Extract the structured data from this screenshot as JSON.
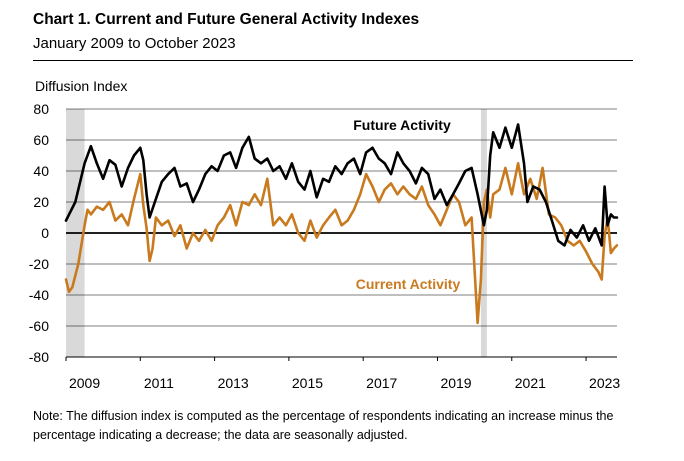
{
  "header": {
    "title": "Chart 1. Current and Future General Activity Indexes",
    "subtitle": "January 2009 to October 2023"
  },
  "note": "Note: The diffusion index is computed as the percentage of respondents indicating an increase minus the percentage indicating a decrease; the data are seasonally adjusted.",
  "chart_data": {
    "type": "line",
    "title": "Chart 1. Current and Future General Activity Indexes",
    "subtitle": "January 2009 to October 2023",
    "ylabel": "Diffusion Index",
    "xlabel": "",
    "ylim": [
      -80,
      80
    ],
    "yticks": [
      -80,
      -60,
      -40,
      -20,
      0,
      20,
      40,
      60,
      80
    ],
    "xlim": [
      2009.0,
      2023.833
    ],
    "xticks": [
      2009,
      2011,
      2013,
      2015,
      2017,
      2019,
      2021,
      2023
    ],
    "grid": true,
    "recessions": [
      [
        2009.0,
        2009.5
      ],
      [
        2020.17,
        2020.33
      ]
    ],
    "colors": {
      "future": "#000000",
      "current": "#c97a1e",
      "recession": "#d9d9d9",
      "grid": "#000000"
    },
    "series": [
      {
        "name": "Future Activity",
        "label": "Future Activity",
        "x": [
          2009.0,
          2009.25,
          2009.5,
          2009.67,
          2009.83,
          2010.0,
          2010.17,
          2010.33,
          2010.5,
          2010.67,
          2010.83,
          2011.0,
          2011.08,
          2011.17,
          2011.25,
          2011.42,
          2011.58,
          2011.75,
          2011.92,
          2012.08,
          2012.25,
          2012.42,
          2012.58,
          2012.75,
          2012.92,
          2013.08,
          2013.25,
          2013.42,
          2013.58,
          2013.75,
          2013.92,
          2014.08,
          2014.25,
          2014.42,
          2014.58,
          2014.75,
          2014.92,
          2015.08,
          2015.25,
          2015.42,
          2015.58,
          2015.75,
          2015.92,
          2016.08,
          2016.25,
          2016.42,
          2016.58,
          2016.75,
          2016.92,
          2017.08,
          2017.25,
          2017.42,
          2017.58,
          2017.75,
          2017.92,
          2018.08,
          2018.25,
          2018.42,
          2018.58,
          2018.75,
          2018.92,
          2019.08,
          2019.25,
          2019.42,
          2019.58,
          2019.75,
          2019.92,
          2020.08,
          2020.25,
          2020.33,
          2020.42,
          2020.5,
          2020.67,
          2020.83,
          2021.0,
          2021.17,
          2021.33,
          2021.42,
          2021.58,
          2021.75,
          2021.92,
          2022.08,
          2022.25,
          2022.42,
          2022.58,
          2022.75,
          2022.92,
          2023.08,
          2023.25,
          2023.42,
          2023.5,
          2023.58,
          2023.67,
          2023.75,
          2023.83
        ],
        "values": [
          8,
          20,
          45,
          56,
          45,
          35,
          47,
          44,
          30,
          42,
          50,
          55,
          47,
          25,
          10,
          22,
          33,
          38,
          42,
          30,
          32,
          20,
          28,
          38,
          43,
          40,
          50,
          52,
          42,
          55,
          62,
          48,
          45,
          48,
          40,
          43,
          35,
          45,
          33,
          28,
          40,
          23,
          35,
          33,
          43,
          38,
          45,
          48,
          38,
          52,
          55,
          48,
          45,
          38,
          52,
          45,
          40,
          32,
          42,
          38,
          22,
          28,
          18,
          25,
          32,
          40,
          42,
          25,
          5,
          15,
          50,
          65,
          55,
          68,
          55,
          70,
          45,
          20,
          30,
          28,
          20,
          8,
          -5,
          -8,
          2,
          -3,
          5,
          -5,
          3,
          -8,
          30,
          5,
          12,
          10,
          10
        ]
      },
      {
        "name": "Current Activity",
        "label": "Current Activity",
        "x": [
          2009.0,
          2009.08,
          2009.17,
          2009.33,
          2009.5,
          2009.58,
          2009.67,
          2009.83,
          2010.0,
          2010.17,
          2010.33,
          2010.5,
          2010.67,
          2010.83,
          2011.0,
          2011.08,
          2011.17,
          2011.25,
          2011.33,
          2011.42,
          2011.58,
          2011.75,
          2011.92,
          2012.08,
          2012.25,
          2012.42,
          2012.58,
          2012.75,
          2012.92,
          2013.08,
          2013.25,
          2013.42,
          2013.58,
          2013.75,
          2013.92,
          2014.08,
          2014.25,
          2014.42,
          2014.58,
          2014.75,
          2014.92,
          2015.08,
          2015.25,
          2015.42,
          2015.58,
          2015.75,
          2015.92,
          2016.08,
          2016.25,
          2016.42,
          2016.58,
          2016.75,
          2016.92,
          2017.08,
          2017.25,
          2017.42,
          2017.58,
          2017.75,
          2017.92,
          2018.08,
          2018.25,
          2018.42,
          2018.58,
          2018.75,
          2018.92,
          2019.08,
          2019.25,
          2019.42,
          2019.58,
          2019.75,
          2019.92,
          2020.08,
          2020.17,
          2020.25,
          2020.33,
          2020.42,
          2020.5,
          2020.67,
          2020.83,
          2021.0,
          2021.17,
          2021.33,
          2021.5,
          2021.67,
          2021.83,
          2022.0,
          2022.17,
          2022.33,
          2022.5,
          2022.67,
          2022.83,
          2023.0,
          2023.17,
          2023.33,
          2023.42,
          2023.5,
          2023.58,
          2023.67,
          2023.75,
          2023.83
        ],
        "values": [
          -30,
          -38,
          -35,
          -20,
          5,
          15,
          12,
          17,
          15,
          20,
          8,
          12,
          5,
          22,
          38,
          18,
          3,
          -18,
          -10,
          10,
          5,
          8,
          -2,
          5,
          -10,
          0,
          -5,
          2,
          -5,
          5,
          10,
          18,
          5,
          20,
          18,
          25,
          18,
          35,
          5,
          10,
          5,
          12,
          0,
          -5,
          8,
          -3,
          5,
          10,
          15,
          5,
          8,
          15,
          25,
          38,
          30,
          20,
          28,
          32,
          25,
          30,
          25,
          22,
          30,
          18,
          12,
          5,
          15,
          25,
          20,
          5,
          10,
          -58,
          -30,
          20,
          28,
          10,
          25,
          28,
          42,
          25,
          45,
          25,
          35,
          22,
          42,
          12,
          10,
          5,
          -5,
          -8,
          -5,
          -12,
          -20,
          -25,
          -30,
          -2,
          10,
          -13,
          -10,
          -8
        ]
      }
    ]
  }
}
